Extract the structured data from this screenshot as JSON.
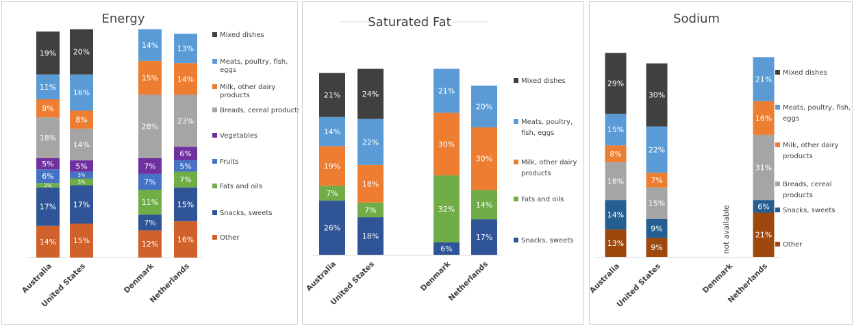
{
  "chart_data": [
    {
      "type": "bar",
      "stacked": true,
      "title": "Energy",
      "categories": [
        "Australia",
        "United States",
        "Denmark",
        "Netherlands"
      ],
      "legend_position": "right",
      "series": [
        {
          "name": "Other",
          "color": "#D0612B",
          "values": [
            14,
            15,
            12,
            16
          ],
          "labels": [
            "14%",
            "15%",
            "12%",
            "16%"
          ]
        },
        {
          "name": "Snacks,  sweets",
          "color": "#2F5597",
          "values": [
            17,
            17,
            7,
            15
          ],
          "labels": [
            "17%",
            "17%",
            "7%",
            "15%"
          ]
        },
        {
          "name": "Fats and oils",
          "color": "#70AD47",
          "values": [
            2,
            3,
            11,
            7
          ],
          "labels": [
            "2%",
            "3%",
            "11%",
            "7%"
          ]
        },
        {
          "name": "Fruits",
          "color": "#4472C4",
          "values": [
            6,
            3,
            7,
            5
          ],
          "labels": [
            "6%",
            "3%",
            "7%",
            "5%"
          ]
        },
        {
          "name": "Vegetables",
          "color": "#7030A0",
          "values": [
            5,
            5,
            7,
            6
          ],
          "labels": [
            "5%",
            "5%",
            "7%",
            "6%"
          ]
        },
        {
          "name": "Breads, cereal products",
          "color": "#A5A5A5",
          "values": [
            18,
            14,
            28,
            23
          ],
          "labels": [
            "18%",
            "14%",
            "28%",
            "23%"
          ]
        },
        {
          "name": "Milk, other dairy products",
          "color": "#ED7D31",
          "values": [
            8,
            8,
            15,
            14
          ],
          "labels": [
            "8%",
            "8%",
            "15%",
            "14%"
          ]
        },
        {
          "name": "Meats, poultry, fish, eggs",
          "color": "#5B9BD5",
          "values": [
            11,
            16,
            14,
            13
          ],
          "labels": [
            "11%",
            "16%",
            "14%",
            "13%"
          ]
        },
        {
          "name": "Mixed dishes",
          "color": "#404040",
          "values": [
            19,
            20,
            null,
            null
          ],
          "labels": [
            "19%",
            "20%",
            "",
            ""
          ]
        }
      ]
    },
    {
      "type": "bar",
      "stacked": true,
      "title": "Saturated Fat",
      "categories": [
        "Australia",
        "United States",
        "Denmark",
        "Netherlands"
      ],
      "legend_position": "right",
      "series": [
        {
          "name": "Snacks,  sweets",
          "color": "#2F5597",
          "values": [
            26,
            18,
            6,
            17
          ],
          "labels": [
            "26%",
            "18%",
            "6%",
            "17%"
          ]
        },
        {
          "name": "Fats and oils",
          "color": "#70AD47",
          "values": [
            7,
            7,
            32,
            14
          ],
          "labels": [
            "7%",
            "7%",
            "32%",
            "14%"
          ]
        },
        {
          "name": "Milk, other dairy products",
          "color": "#ED7D31",
          "values": [
            19,
            18,
            30,
            30
          ],
          "labels": [
            "19%",
            "18%",
            "30%",
            "30%"
          ]
        },
        {
          "name": "Meats, poultry, fish, eggs",
          "color": "#5B9BD5",
          "values": [
            14,
            22,
            21,
            20
          ],
          "labels": [
            "14%",
            "22%",
            "21%",
            "20%"
          ]
        },
        {
          "name": "Mixed dishes",
          "color": "#404040",
          "values": [
            21,
            24,
            null,
            null
          ],
          "labels": [
            "21%",
            "24%",
            "",
            ""
          ]
        }
      ]
    },
    {
      "type": "bar",
      "stacked": true,
      "title": "Sodium",
      "categories": [
        "Australia",
        "United States",
        "Denmark",
        "Netherlands"
      ],
      "legend_position": "right",
      "annotations": [
        {
          "category": "Denmark",
          "text": "not available"
        }
      ],
      "series": [
        {
          "name": "Other",
          "color": "#9E480E",
          "values": [
            13,
            9,
            null,
            21
          ],
          "labels": [
            "13%",
            "9%",
            "",
            "21%"
          ]
        },
        {
          "name": "Snacks,  sweets",
          "color": "#255E91",
          "values": [
            14,
            9,
            null,
            6
          ],
          "labels": [
            "14%",
            "9%",
            "",
            "6%"
          ]
        },
        {
          "name": "Breads, cereal products",
          "color": "#A5A5A5",
          "values": [
            18,
            15,
            null,
            31
          ],
          "labels": [
            "18%",
            "15%",
            "",
            "31%"
          ]
        },
        {
          "name": "Milk, other dairy products",
          "color": "#ED7D31",
          "values": [
            8,
            7,
            null,
            16
          ],
          "labels": [
            "8%",
            "7%",
            "",
            "16%"
          ]
        },
        {
          "name": "Meats, poultry, fish, eggs",
          "color": "#5B9BD5",
          "values": [
            15,
            22,
            null,
            21
          ],
          "labels": [
            "15%",
            "22%",
            "",
            "21%"
          ]
        },
        {
          "name": "Mixed dishes",
          "color": "#404040",
          "values": [
            29,
            30,
            null,
            null
          ],
          "labels": [
            "29%",
            "30%",
            "",
            ""
          ]
        }
      ]
    }
  ],
  "legends": [
    {
      "items": [
        {
          "text": "Mixed dishes",
          "color": "#404040"
        },
        {
          "text": "Meats, poultry, fish,\neggs",
          "color": "#5B9BD5"
        },
        {
          "text": "Milk, other dairy\nproducts",
          "color": "#ED7D31"
        },
        {
          "text": "Breads, cereal products",
          "color": "#A5A5A5"
        },
        {
          "text": "Vegetables",
          "color": "#7030A0"
        },
        {
          "text": "Fruits",
          "color": "#4472C4"
        },
        {
          "text": "Fats and oils",
          "color": "#70AD47"
        },
        {
          "text": "Snacks,  sweets",
          "color": "#2F5597"
        },
        {
          "text": "Other",
          "color": "#D0612B"
        }
      ]
    },
    {
      "items": [
        {
          "text": "Mixed dishes",
          "color": "#404040"
        },
        {
          "text": "Meats, poultry,\nfish, eggs",
          "color": "#5B9BD5"
        },
        {
          "text": "Milk, other dairy\nproducts",
          "color": "#ED7D31"
        },
        {
          "text": "Fats and oils",
          "color": "#70AD47"
        },
        {
          "text": "Snacks,  sweets",
          "color": "#2F5597"
        }
      ]
    },
    {
      "items": [
        {
          "text": "Mixed dishes",
          "color": "#404040"
        },
        {
          "text": "Meats, poultry, fish,\neggs",
          "color": "#5B9BD5"
        },
        {
          "text": "Milk, other dairy\nproducts",
          "color": "#ED7D31"
        },
        {
          "text": "Breads, cereal\nproducts",
          "color": "#A5A5A5"
        },
        {
          "text": "Snacks,  sweets",
          "color": "#255E91"
        },
        {
          "text": "Other",
          "color": "#9E480E"
        }
      ]
    }
  ]
}
